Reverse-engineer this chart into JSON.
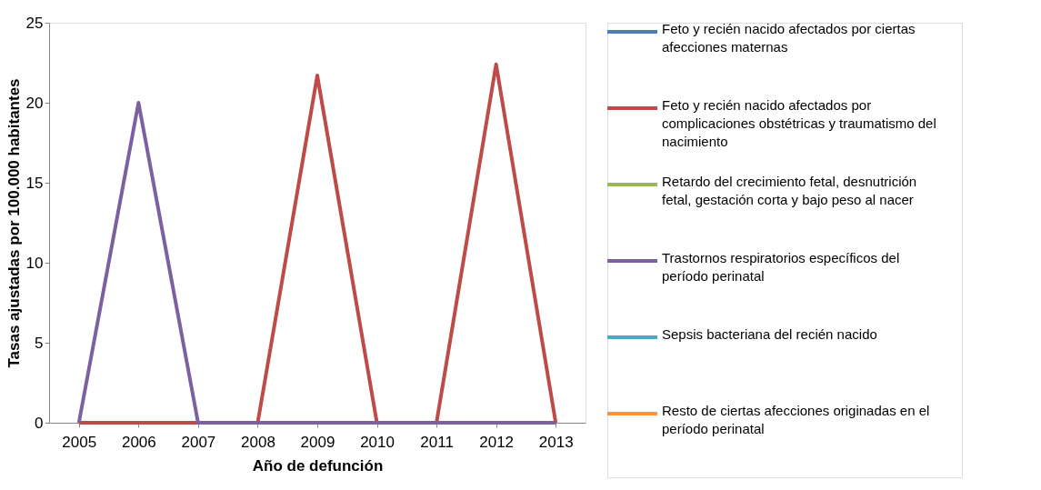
{
  "chart_data": {
    "type": "line",
    "xlabel": "Año de defunción",
    "ylabel": "Tasas ajustadas por 100.000 habitantes",
    "categories": [
      "2005",
      "2006",
      "2007",
      "2008",
      "2009",
      "2010",
      "2011",
      "2012",
      "2013"
    ],
    "series": [
      {
        "name": "Feto y recién nacido afectados por ciertas afecciones maternas",
        "color": "#4a7ebb",
        "values": [
          null,
          null,
          null,
          null,
          null,
          null,
          null,
          null,
          null
        ]
      },
      {
        "name": "Feto y recién nacido afectados por complicaciones obstétricas y traumatismo del nacimiento",
        "color": "#be4b48",
        "values": [
          0,
          0,
          0,
          0,
          21.7,
          0,
          0,
          22.4,
          0
        ]
      },
      {
        "name": "Retardo del crecimiento fetal, desnutrición fetal, gestación corta y bajo peso al nacer",
        "color": "#98b954",
        "values": [
          null,
          null,
          null,
          null,
          null,
          null,
          null,
          null,
          null
        ]
      },
      {
        "name": "Trastornos respiratorios específicos del período perinatal",
        "color": "#7d60a0",
        "values": [
          0,
          20,
          0,
          0,
          0,
          0,
          0,
          0,
          0
        ]
      },
      {
        "name": "Sepsis bacteriana del recién nacido",
        "color": "#46aac5",
        "values": [
          null,
          null,
          null,
          null,
          null,
          null,
          null,
          null,
          null
        ]
      },
      {
        "name": "Resto de ciertas afecciones originadas en el período perinatal",
        "color": "#f69240",
        "values": [
          null,
          null,
          null,
          null,
          null,
          null,
          null,
          null,
          null
        ]
      }
    ],
    "ylim": [
      0,
      25
    ],
    "yticks": [
      0,
      5,
      10,
      15,
      20,
      25
    ],
    "grid": false,
    "legend": "right",
    "marker": "none",
    "line_style": "solid"
  }
}
